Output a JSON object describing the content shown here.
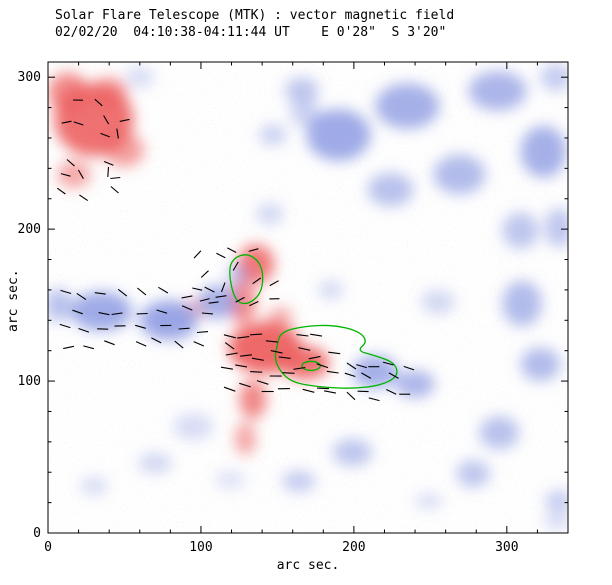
{
  "chart_data": {
    "type": "heatmap",
    "title": "Solar Flare Telescope (MTK) : vector magnetic field",
    "subtitle": "02/02/20  04:10:38-04:11:44 UT    E 0'28\"  S 3'20\"",
    "xlabel": "arc sec.",
    "ylabel": "arc sec.",
    "xlim": [
      0,
      340
    ],
    "ylim": [
      0,
      310
    ],
    "xticks": [
      0,
      100,
      200,
      300
    ],
    "yticks": [
      0,
      100,
      200,
      300
    ],
    "minor_tick_step": 20,
    "grid": false,
    "legend": null,
    "colors": {
      "positive": "#ee5f5f",
      "negative": "#7f8fe0",
      "contour": "#00b400",
      "vector": "#000000",
      "frame": "#000000",
      "background": "#ffffff"
    },
    "blob_format": "[x_arcsec, y_arcsec, rx_arcsec, ry_arcsec, polarity(pos=red/neg=blue), opacity]",
    "blobs": [
      [
        30,
        272,
        26,
        24,
        "pos",
        0.9
      ],
      [
        13,
        290,
        13,
        13,
        "pos",
        0.75
      ],
      [
        50,
        252,
        13,
        11,
        "pos",
        0.6
      ],
      [
        17,
        236,
        11,
        9,
        "pos",
        0.55
      ],
      [
        40,
        290,
        12,
        10,
        "pos",
        0.6
      ],
      [
        136,
        177,
        12,
        13,
        "pos",
        0.85
      ],
      [
        127,
        152,
        9,
        14,
        "pos",
        0.75
      ],
      [
        142,
        122,
        24,
        17,
        "pos",
        0.95
      ],
      [
        168,
        112,
        16,
        11,
        "pos",
        0.9
      ],
      [
        134,
        88,
        9,
        13,
        "pos",
        0.75
      ],
      [
        129,
        62,
        7,
        11,
        "pos",
        0.55
      ],
      [
        97,
        148,
        9,
        6,
        "pos",
        0.45
      ],
      [
        152,
        142,
        8,
        7,
        "pos",
        0.5
      ],
      [
        190,
        262,
        21,
        17,
        "neg",
        0.75
      ],
      [
        235,
        281,
        21,
        15,
        "neg",
        0.7
      ],
      [
        294,
        291,
        19,
        13,
        "neg",
        0.65
      ],
      [
        324,
        251,
        15,
        17,
        "neg",
        0.7
      ],
      [
        269,
        236,
        17,
        13,
        "neg",
        0.6
      ],
      [
        224,
        226,
        15,
        11,
        "neg",
        0.55
      ],
      [
        166,
        291,
        11,
        9,
        "neg",
        0.5
      ],
      [
        168,
        276,
        10,
        8,
        "neg",
        0.4
      ],
      [
        147,
        262,
        9,
        7,
        "neg",
        0.4
      ],
      [
        145,
        210,
        9,
        7,
        "neg",
        0.35
      ],
      [
        35,
        146,
        20,
        13,
        "neg",
        0.75
      ],
      [
        79,
        140,
        19,
        13,
        "neg",
        0.8
      ],
      [
        111,
        152,
        13,
        11,
        "neg",
        0.7
      ],
      [
        7,
        150,
        9,
        11,
        "neg",
        0.55
      ],
      [
        124,
        170,
        7,
        7,
        "neg",
        0.5
      ],
      [
        214,
        106,
        15,
        11,
        "neg",
        0.7
      ],
      [
        240,
        98,
        13,
        9,
        "neg",
        0.65
      ],
      [
        310,
        151,
        13,
        15,
        "neg",
        0.6
      ],
      [
        322,
        111,
        13,
        11,
        "neg",
        0.6
      ],
      [
        309,
        199,
        12,
        12,
        "neg",
        0.5
      ],
      [
        295,
        66,
        13,
        11,
        "neg",
        0.55
      ],
      [
        278,
        39,
        11,
        9,
        "neg",
        0.5
      ],
      [
        334,
        201,
        9,
        13,
        "neg",
        0.5
      ],
      [
        199,
        53,
        13,
        9,
        "neg",
        0.5
      ],
      [
        164,
        34,
        11,
        7,
        "neg",
        0.45
      ],
      [
        119,
        35,
        10,
        6,
        "neg",
        0.25
      ],
      [
        70,
        46,
        11,
        7,
        "neg",
        0.35
      ],
      [
        30,
        31,
        9,
        6,
        "neg",
        0.3
      ],
      [
        334,
        21,
        9,
        7,
        "neg",
        0.45
      ],
      [
        333,
        8,
        9,
        6,
        "neg",
        0.3
      ],
      [
        249,
        21,
        9,
        5,
        "neg",
        0.3
      ],
      [
        95,
        70,
        13,
        9,
        "neg",
        0.3
      ],
      [
        60,
        300,
        9,
        7,
        "neg",
        0.3
      ],
      [
        332,
        300,
        10,
        9,
        "neg",
        0.45
      ],
      [
        255,
        152,
        11,
        8,
        "neg",
        0.35
      ],
      [
        185,
        160,
        8,
        6,
        "neg",
        0.35
      ]
    ],
    "vector_cluster_format": "grid of short field-azimuth segments; coords in arcsec, angles in degrees, len in px",
    "vector_clusters": [
      {
        "x": 5,
        "y": 216,
        "w": 49,
        "h": 74,
        "rows": 6,
        "cols": 4,
        "base_angle": -40,
        "jitter": 55,
        "len": 10,
        "skip": 0.25
      },
      {
        "x": 3,
        "y": 118,
        "w": 118,
        "h": 44,
        "rows": 4,
        "cols": 9,
        "base_angle": -12,
        "jitter": 28,
        "len": 11,
        "skip": 0.12
      },
      {
        "x": 95,
        "y": 148,
        "w": 55,
        "h": 40,
        "rows": 4,
        "cols": 5,
        "base_angle": 15,
        "jitter": 55,
        "len": 10,
        "skip": 0.2
      },
      {
        "x": 112,
        "y": 90,
        "w": 80,
        "h": 44,
        "rows": 4,
        "cols": 8,
        "base_angle": -4,
        "jitter": 16,
        "len": 12,
        "skip": 0.08
      },
      {
        "x": 192,
        "y": 86,
        "w": 46,
        "h": 30,
        "rows": 3,
        "cols": 5,
        "base_angle": -25,
        "jitter": 25,
        "len": 11,
        "skip": 0.12
      }
    ],
    "contours": [
      {
        "points": [
          [
            118,
            172
          ],
          [
            121,
            181
          ],
          [
            130,
            184
          ],
          [
            138,
            179
          ],
          [
            141,
            169
          ],
          [
            139,
            157
          ],
          [
            130,
            150
          ],
          [
            122,
            153
          ]
        ]
      },
      {
        "points": [
          [
            150,
            124
          ],
          [
            152,
            132
          ],
          [
            166,
            136
          ],
          [
            186,
            137
          ],
          [
            203,
            133
          ],
          [
            209,
            126
          ],
          [
            202,
            120
          ],
          [
            213,
            117
          ],
          [
            227,
            112
          ],
          [
            229,
            103
          ],
          [
            217,
            97
          ],
          [
            199,
            95
          ],
          [
            178,
            96
          ],
          [
            160,
            99
          ],
          [
            152,
            106
          ],
          [
            148,
            115
          ]
        ]
      },
      {
        "ellipse": {
          "x": 172,
          "y": 110,
          "rx": 6,
          "ry": 3
        }
      }
    ]
  }
}
